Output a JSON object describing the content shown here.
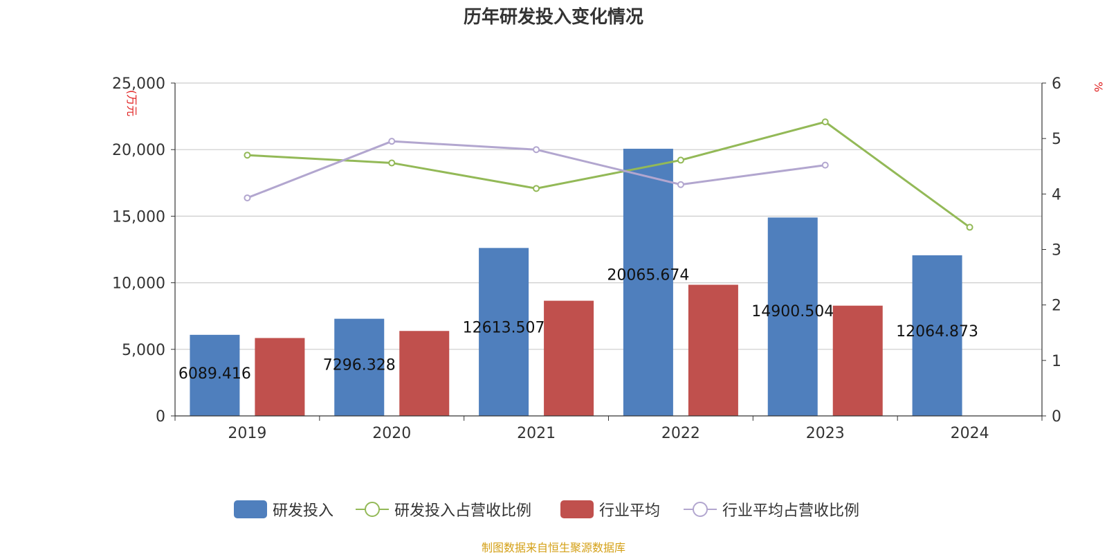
{
  "title": "历年研发投入变化情况",
  "source": "制图数据来自恒生聚源数据库",
  "chart_data": {
    "type": "bar",
    "title": "历年研发投入变化情况",
    "categories": [
      "2019",
      "2020",
      "2021",
      "2022",
      "2023",
      "2024"
    ],
    "y_left": {
      "label": "(万元",
      "ylim": [
        0,
        25000
      ],
      "ticks": [
        "0",
        "5,000",
        "10,000",
        "15,000",
        "20,000",
        "25,000"
      ],
      "tick_values": [
        0,
        5000,
        10000,
        15000,
        20000,
        25000
      ]
    },
    "y_right": {
      "label": "%",
      "ylim": [
        0,
        6
      ],
      "ticks": [
        "0",
        "1",
        "2",
        "3",
        "4",
        "5",
        "6"
      ],
      "tick_values": [
        0,
        1,
        2,
        3,
        4,
        5,
        6
      ]
    },
    "grid": true,
    "legend_position": "bottom",
    "series": [
      {
        "name": "研发投入",
        "type": "bar",
        "axis": "left",
        "color": "#4f7fbd",
        "values": [
          6089.416,
          7296.328,
          12613.507,
          20065.674,
          14900.504,
          12064.873
        ],
        "data_labels": [
          "6089.416",
          "7296.328",
          "12613.507",
          "20065.674",
          "14900.504",
          "12064.873"
        ]
      },
      {
        "name": "研发投入占营收比例",
        "type": "line",
        "axis": "right",
        "color": "#93b957",
        "values": [
          4.7,
          4.56,
          4.1,
          4.61,
          5.3,
          3.4
        ]
      },
      {
        "name": "行业平均",
        "type": "bar",
        "axis": "left",
        "color": "#c0504d",
        "values": [
          5850,
          6380,
          8650,
          9850,
          8280,
          null
        ]
      },
      {
        "name": "行业平均占营收比例",
        "type": "line",
        "axis": "right",
        "color": "#b2a6cf",
        "values": [
          3.93,
          4.95,
          4.8,
          4.17,
          4.52,
          null
        ]
      }
    ]
  }
}
